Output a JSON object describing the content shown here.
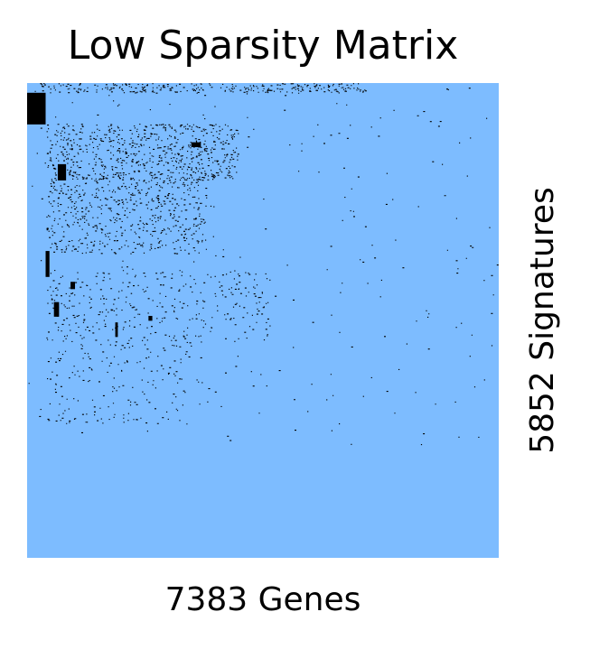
{
  "chart_data": {
    "type": "heatmap",
    "title": "Low Sparsity Matrix",
    "xlabel": "7383 Genes",
    "ylabel": "5852 Signatures",
    "n_cols": 7383,
    "n_rows": 5852,
    "background_color": "#7dbcff",
    "nonzero_color": "#000000",
    "grid": false,
    "legend": "none",
    "dense_blocks": [
      {
        "x": [
          0,
          290
        ],
        "y": [
          120,
          510
        ]
      },
      {
        "x": [
          2570,
          2720
        ],
        "y": [
          730,
          790
        ]
      },
      {
        "x": [
          480,
          610
        ],
        "y": [
          1000,
          1200
        ]
      },
      {
        "x": [
          290,
          350
        ],
        "y": [
          2070,
          2390
        ]
      },
      {
        "x": [
          680,
          750
        ],
        "y": [
          2450,
          2540
        ]
      },
      {
        "x": [
          420,
          500
        ],
        "y": [
          2700,
          2880
        ]
      },
      {
        "x": [
          1380,
          1420
        ],
        "y": [
          2950,
          3130
        ]
      },
      {
        "x": [
          1900,
          1960
        ],
        "y": [
          2870,
          2930
        ]
      }
    ],
    "scatter_regions": [
      {
        "x": [
          200,
          5300
        ],
        "y": [
          0,
          120
        ],
        "density": 0.22
      },
      {
        "x": [
          300,
          3300
        ],
        "y": [
          500,
          1200
        ],
        "density": 0.16
      },
      {
        "x": [
          300,
          2800
        ],
        "y": [
          1200,
          2100
        ],
        "density": 0.11
      },
      {
        "x": [
          300,
          3800
        ],
        "y": [
          2300,
          3200
        ],
        "density": 0.05
      },
      {
        "x": [
          300,
          2500
        ],
        "y": [
          3200,
          4200
        ],
        "density": 0.035
      },
      {
        "x": [
          0,
          7383
        ],
        "y": [
          0,
          4500
        ],
        "density": 0.004
      }
    ]
  }
}
